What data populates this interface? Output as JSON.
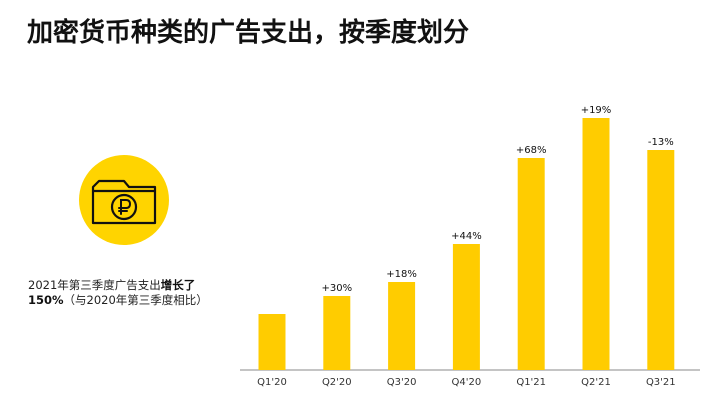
{
  "title": "加密货币种类的广告支出，按季度划分",
  "note": {
    "line1_prefix": "2021年第三季度广告支出",
    "line1_bold": "增长了",
    "line2_bold": "150%",
    "line2_rest": "（与2020年第三季度相比）"
  },
  "icon": {
    "name": "ruble-wallet-icon",
    "circle_color": "#FFD400"
  },
  "colors": {
    "bar": "#FFCC00",
    "axis": "#888888"
  },
  "chart_data": {
    "type": "bar",
    "categories": [
      "Q1'20",
      "Q2'20",
      "Q3'20",
      "Q4'20",
      "Q1'21",
      "Q2'21",
      "Q3'21"
    ],
    "values": [
      28,
      37,
      44,
      63,
      106,
      126,
      110
    ],
    "data_labels": [
      "",
      "+30%",
      "+18%",
      "+44%",
      "+68%",
      "+19%",
      "-13%"
    ],
    "ylim": [
      0,
      130
    ],
    "grid": false,
    "title": "",
    "xlabel": "",
    "ylabel": ""
  }
}
